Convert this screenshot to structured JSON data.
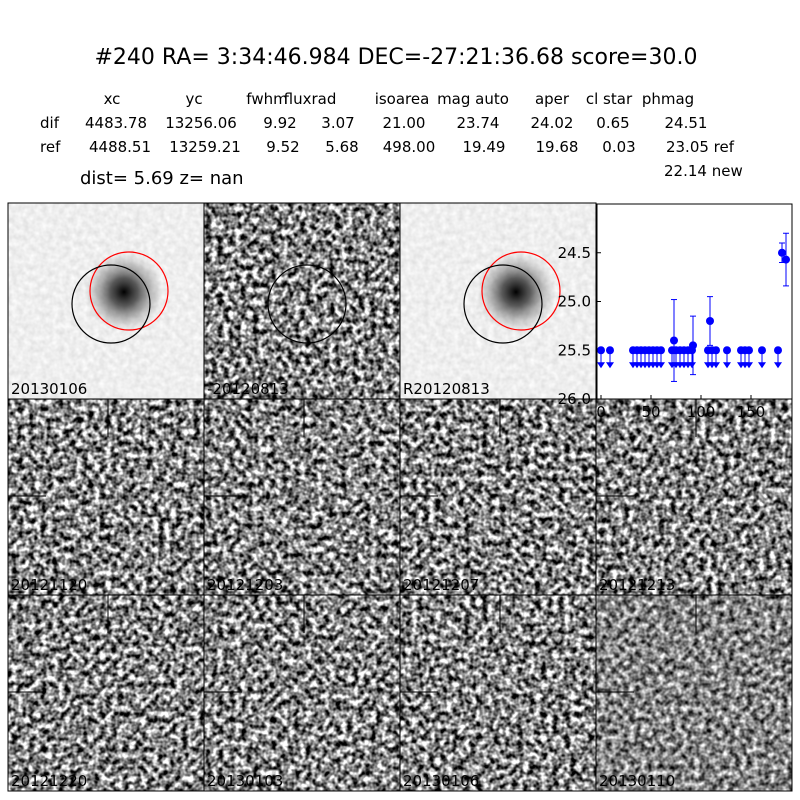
{
  "header": {
    "title": "#240   RA= 3:34:46.984 DEC=-27:21:36.68       score=30.0",
    "dist": "dist=  5.69      z=   nan"
  },
  "table": {
    "columns": [
      "xc",
      "yc",
      "fwhm",
      "fluxrad",
      "isoarea",
      "mag auto",
      "aper",
      "cl star",
      "phmag"
    ],
    "rows": [
      {
        "label": "dif",
        "cells": [
          "4483.78",
          "13256.06",
          "9.92",
          "3.07",
          "21.00",
          "23.74",
          "24.02",
          "0.65",
          "24.51"
        ]
      },
      {
        "label": "ref",
        "cells": [
          "4488.51",
          "13259.21",
          "9.52",
          "5.68",
          "498.00",
          "19.49",
          "19.68",
          "0.03",
          "23.05 ref"
        ]
      }
    ],
    "extra": "22.14 new"
  },
  "panels": [
    {
      "label": "20130106"
    },
    {
      "label": "-20120813"
    },
    {
      "label": "R20120813"
    },
    {
      "label": "20121120"
    },
    {
      "label": "20121203"
    },
    {
      "label": "20121207"
    },
    {
      "label": "20121213"
    },
    {
      "label": "20121220"
    },
    {
      "label": "20130103"
    },
    {
      "label": "20130106",
      "color": "#ff0000"
    },
    {
      "label": "20130110"
    }
  ],
  "chart_data": {
    "type": "scatter",
    "xlim": [
      -4,
      191
    ],
    "xticks": [
      0,
      50,
      100,
      150
    ],
    "ylim": [
      26,
      24
    ],
    "yticks": [
      24.5,
      {
        "value": 25,
        "label": "25.0"
      },
      25.5,
      {
        "value": 26,
        "label": "26.0"
      }
    ],
    "series": [
      {
        "color": "#0000ff",
        "x": [
          73,
          92,
          109,
          181,
          185
        ],
        "values": [
          25.4,
          25.45,
          25.2,
          24.5,
          24.57
        ],
        "errors": [
          0.42,
          0.3,
          0.25,
          0.1,
          0.27
        ]
      },
      {
        "color": "#0000ff",
        "upper_limit": true,
        "x": [
          0,
          9,
          32,
          36,
          40,
          44,
          48,
          52,
          56,
          60,
          71,
          75,
          79,
          83,
          87,
          91,
          107,
          111,
          115,
          126,
          140,
          144,
          148,
          161,
          177
        ],
        "values": [
          25.5,
          25.5,
          25.5,
          25.5,
          25.5,
          25.5,
          25.5,
          25.5,
          25.5,
          25.5,
          25.5,
          25.5,
          25.5,
          25.5,
          25.5,
          25.5,
          25.5,
          25.5,
          25.5,
          25.5,
          25.5,
          25.5,
          25.5,
          25.5,
          25.5
        ]
      }
    ]
  }
}
